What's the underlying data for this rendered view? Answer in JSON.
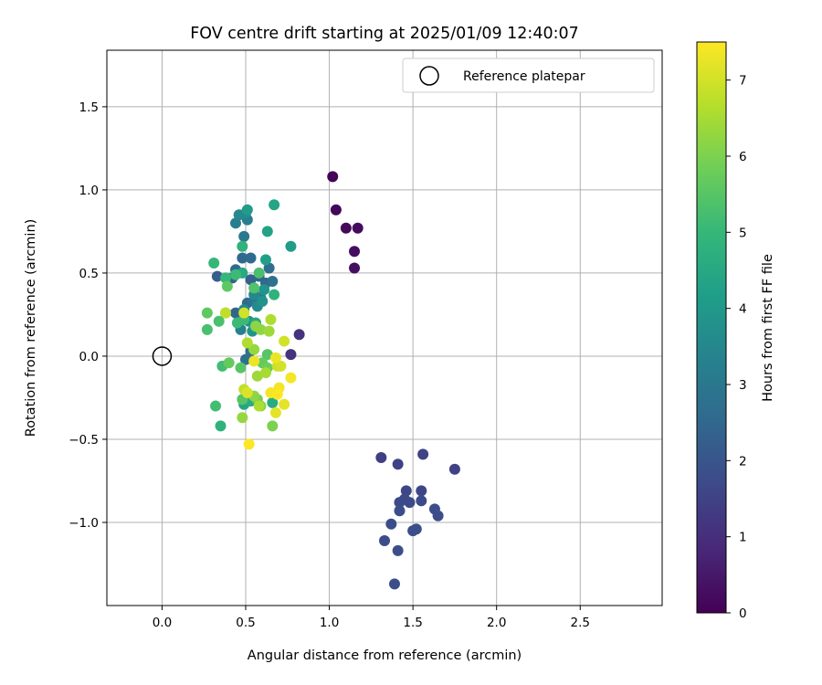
{
  "chart_data": {
    "type": "scatter",
    "title": "FOV centre drift starting at 2025/01/09 12:40:07",
    "xlabel": "Angular distance from reference (arcmin)",
    "ylabel": "Rotation from reference (arcmin)",
    "xlim": [
      -0.33,
      2.99
    ],
    "ylim": [
      -1.5,
      1.84
    ],
    "xticks": [
      "0.0",
      "0.5",
      "1.0",
      "1.5",
      "2.0",
      "2.5"
    ],
    "xtick_values": [
      0.0,
      0.5,
      1.0,
      1.5,
      2.0,
      2.5
    ],
    "yticks": [
      "−1.0",
      "−0.5",
      "0.0",
      "0.5",
      "1.0",
      "1.5"
    ],
    "ytick_values": [
      -1.0,
      -0.5,
      0.0,
      0.5,
      1.0,
      1.5
    ],
    "grid": true,
    "legend": {
      "position": "top-right",
      "label": "Reference platepar"
    },
    "reference_point": {
      "x": 0.0,
      "y": 0.0
    },
    "colorbar": {
      "label": "Hours from first FF file",
      "min": 0,
      "max": 7.5,
      "ticks": [
        "0",
        "1",
        "2",
        "3",
        "4",
        "5",
        "6",
        "7"
      ],
      "tick_values": [
        0,
        1,
        2,
        3,
        4,
        5,
        6,
        7
      ],
      "colormap": "viridis",
      "colors": [
        "#440154",
        "#482878",
        "#3e4989",
        "#31688e",
        "#26828e",
        "#1f9e89",
        "#35b779",
        "#6ece58",
        "#b5de2b",
        "#fde725"
      ]
    },
    "points": [
      {
        "x": 1.02,
        "y": 1.08,
        "c": 0.05
      },
      {
        "x": 1.04,
        "y": 0.88,
        "c": 0.1
      },
      {
        "x": 1.1,
        "y": 0.77,
        "c": 0.15
      },
      {
        "x": 1.17,
        "y": 0.77,
        "c": 0.2
      },
      {
        "x": 1.15,
        "y": 0.63,
        "c": 0.25
      },
      {
        "x": 1.15,
        "y": 0.53,
        "c": 0.3
      },
      {
        "x": 0.82,
        "y": 0.13,
        "c": 1.1
      },
      {
        "x": 0.77,
        "y": 0.01,
        "c": 1.1
      },
      {
        "x": 1.31,
        "y": -0.61,
        "c": 1.4
      },
      {
        "x": 1.56,
        "y": -0.59,
        "c": 1.5
      },
      {
        "x": 1.75,
        "y": -0.68,
        "c": 1.5
      },
      {
        "x": 1.41,
        "y": -0.65,
        "c": 1.5
      },
      {
        "x": 1.46,
        "y": -0.81,
        "c": 1.6
      },
      {
        "x": 1.55,
        "y": -0.81,
        "c": 1.6
      },
      {
        "x": 1.42,
        "y": -0.88,
        "c": 1.7
      },
      {
        "x": 1.48,
        "y": -0.88,
        "c": 1.7
      },
      {
        "x": 1.45,
        "y": -0.86,
        "c": 1.7
      },
      {
        "x": 1.55,
        "y": -0.87,
        "c": 1.7
      },
      {
        "x": 1.42,
        "y": -0.93,
        "c": 1.8
      },
      {
        "x": 1.63,
        "y": -0.92,
        "c": 1.8
      },
      {
        "x": 1.65,
        "y": -0.96,
        "c": 1.8
      },
      {
        "x": 1.37,
        "y": -1.01,
        "c": 1.8
      },
      {
        "x": 1.52,
        "y": -1.04,
        "c": 1.8
      },
      {
        "x": 1.5,
        "y": -1.05,
        "c": 1.8
      },
      {
        "x": 1.33,
        "y": -1.11,
        "c": 1.8
      },
      {
        "x": 1.41,
        "y": -1.17,
        "c": 1.8
      },
      {
        "x": 1.39,
        "y": -1.37,
        "c": 1.8
      },
      {
        "x": 0.33,
        "y": 0.48,
        "c": 2.2
      },
      {
        "x": 0.42,
        "y": 0.47,
        "c": 2.3
      },
      {
        "x": 0.53,
        "y": 0.46,
        "c": 2.3
      },
      {
        "x": 0.58,
        "y": 0.48,
        "c": 2.4
      },
      {
        "x": 0.62,
        "y": 0.44,
        "c": 2.5
      },
      {
        "x": 0.48,
        "y": 0.59,
        "c": 2.5
      },
      {
        "x": 0.53,
        "y": 0.59,
        "c": 2.6
      },
      {
        "x": 0.44,
        "y": 0.52,
        "c": 2.6
      },
      {
        "x": 0.64,
        "y": 0.53,
        "c": 2.7
      },
      {
        "x": 0.66,
        "y": 0.45,
        "c": 2.8
      },
      {
        "x": 0.51,
        "y": 0.32,
        "c": 2.6
      },
      {
        "x": 0.55,
        "y": 0.33,
        "c": 2.9
      },
      {
        "x": 0.59,
        "y": 0.35,
        "c": 3.0
      },
      {
        "x": 0.44,
        "y": 0.26,
        "c": 2.4
      },
      {
        "x": 0.49,
        "y": 0.72,
        "c": 3.0
      },
      {
        "x": 0.51,
        "y": 0.82,
        "c": 3.2
      },
      {
        "x": 0.44,
        "y": 0.8,
        "c": 3.2
      },
      {
        "x": 0.46,
        "y": 0.85,
        "c": 3.5
      },
      {
        "x": 0.5,
        "y": 0.86,
        "c": 3.6
      },
      {
        "x": 0.5,
        "y": -0.02,
        "c": 2.8
      },
      {
        "x": 0.53,
        "y": 0.03,
        "c": 2.8
      },
      {
        "x": 0.47,
        "y": 0.16,
        "c": 3.3
      },
      {
        "x": 0.55,
        "y": 0.37,
        "c": 3.5
      },
      {
        "x": 0.57,
        "y": 0.3,
        "c": 3.6
      },
      {
        "x": 0.6,
        "y": 0.33,
        "c": 3.8
      },
      {
        "x": 0.52,
        "y": 0.21,
        "c": 3.8
      },
      {
        "x": 0.49,
        "y": 0.28,
        "c": 3.5
      },
      {
        "x": 0.54,
        "y": 0.15,
        "c": 3.9
      },
      {
        "x": 0.61,
        "y": 0.4,
        "c": 3.9
      },
      {
        "x": 0.51,
        "y": 0.88,
        "c": 4.1
      },
      {
        "x": 0.77,
        "y": 0.66,
        "c": 4.1
      },
      {
        "x": 0.62,
        "y": 0.58,
        "c": 4.2
      },
      {
        "x": 0.63,
        "y": 0.75,
        "c": 4.3
      },
      {
        "x": 0.67,
        "y": 0.91,
        "c": 4.4
      },
      {
        "x": 0.48,
        "y": 0.5,
        "c": 4.5
      },
      {
        "x": 0.56,
        "y": 0.2,
        "c": 4.5
      },
      {
        "x": 0.49,
        "y": -0.29,
        "c": 4.4
      },
      {
        "x": 0.53,
        "y": -0.27,
        "c": 4.6
      },
      {
        "x": 0.66,
        "y": -0.28,
        "c": 4.6
      },
      {
        "x": 0.48,
        "y": 0.66,
        "c": 4.8
      },
      {
        "x": 0.67,
        "y": 0.37,
        "c": 4.8
      },
      {
        "x": 0.35,
        "y": -0.42,
        "c": 4.8
      },
      {
        "x": 0.31,
        "y": 0.56,
        "c": 5.0
      },
      {
        "x": 0.38,
        "y": 0.47,
        "c": 5.0
      },
      {
        "x": 0.44,
        "y": 0.49,
        "c": 5.1
      },
      {
        "x": 0.45,
        "y": 0.2,
        "c": 5.1
      },
      {
        "x": 0.49,
        "y": 0.22,
        "c": 5.1
      },
      {
        "x": 0.38,
        "y": 0.26,
        "c": 5.1
      },
      {
        "x": 0.36,
        "y": -0.06,
        "c": 5.2
      },
      {
        "x": 0.32,
        "y": -0.3,
        "c": 5.2
      },
      {
        "x": 0.27,
        "y": 0.16,
        "c": 5.3
      },
      {
        "x": 0.34,
        "y": 0.21,
        "c": 5.3
      },
      {
        "x": 0.58,
        "y": 0.5,
        "c": 5.3
      },
      {
        "x": 0.55,
        "y": 0.41,
        "c": 5.4
      },
      {
        "x": 0.63,
        "y": 0.01,
        "c": 5.5
      },
      {
        "x": 0.47,
        "y": -0.07,
        "c": 5.5
      },
      {
        "x": 0.48,
        "y": -0.26,
        "c": 5.5
      },
      {
        "x": 0.27,
        "y": 0.26,
        "c": 5.6
      },
      {
        "x": 0.39,
        "y": 0.42,
        "c": 5.6
      },
      {
        "x": 0.4,
        "y": -0.04,
        "c": 5.7
      },
      {
        "x": 0.6,
        "y": -0.04,
        "c": 5.7
      },
      {
        "x": 0.63,
        "y": -0.07,
        "c": 5.8
      },
      {
        "x": 0.57,
        "y": -0.26,
        "c": 5.9
      },
      {
        "x": 0.59,
        "y": -0.3,
        "c": 6.0
      },
      {
        "x": 0.66,
        "y": -0.42,
        "c": 6.0
      },
      {
        "x": 0.55,
        "y": -0.24,
        "c": 6.2
      },
      {
        "x": 0.56,
        "y": 0.18,
        "c": 6.2
      },
      {
        "x": 0.59,
        "y": 0.16,
        "c": 6.2
      },
      {
        "x": 0.55,
        "y": 0.04,
        "c": 6.3
      },
      {
        "x": 0.48,
        "y": -0.37,
        "c": 6.3
      },
      {
        "x": 0.64,
        "y": 0.15,
        "c": 6.4
      },
      {
        "x": 0.57,
        "y": -0.12,
        "c": 6.4
      },
      {
        "x": 0.62,
        "y": -0.1,
        "c": 6.5
      },
      {
        "x": 0.65,
        "y": 0.22,
        "c": 6.6
      },
      {
        "x": 0.51,
        "y": 0.08,
        "c": 6.6
      },
      {
        "x": 0.58,
        "y": -0.3,
        "c": 6.6
      },
      {
        "x": 0.49,
        "y": -0.2,
        "c": 6.8
      },
      {
        "x": 0.38,
        "y": 0.26,
        "c": 6.8
      },
      {
        "x": 0.69,
        "y": -0.06,
        "c": 6.9
      },
      {
        "x": 0.73,
        "y": 0.09,
        "c": 7.0
      },
      {
        "x": 0.71,
        "y": -0.06,
        "c": 7.0
      },
      {
        "x": 0.51,
        "y": -0.22,
        "c": 7.1
      },
      {
        "x": 0.73,
        "y": -0.29,
        "c": 7.2
      },
      {
        "x": 0.68,
        "y": -0.34,
        "c": 7.2
      },
      {
        "x": 0.49,
        "y": 0.26,
        "c": 7.0
      },
      {
        "x": 0.55,
        "y": -0.03,
        "c": 7.3
      },
      {
        "x": 0.68,
        "y": -0.01,
        "c": 7.3
      },
      {
        "x": 0.77,
        "y": -0.13,
        "c": 7.4
      },
      {
        "x": 0.7,
        "y": -0.19,
        "c": 7.4
      },
      {
        "x": 0.65,
        "y": -0.22,
        "c": 7.4
      },
      {
        "x": 0.69,
        "y": -0.23,
        "c": 7.5
      },
      {
        "x": 0.52,
        "y": -0.53,
        "c": 7.5
      }
    ]
  }
}
